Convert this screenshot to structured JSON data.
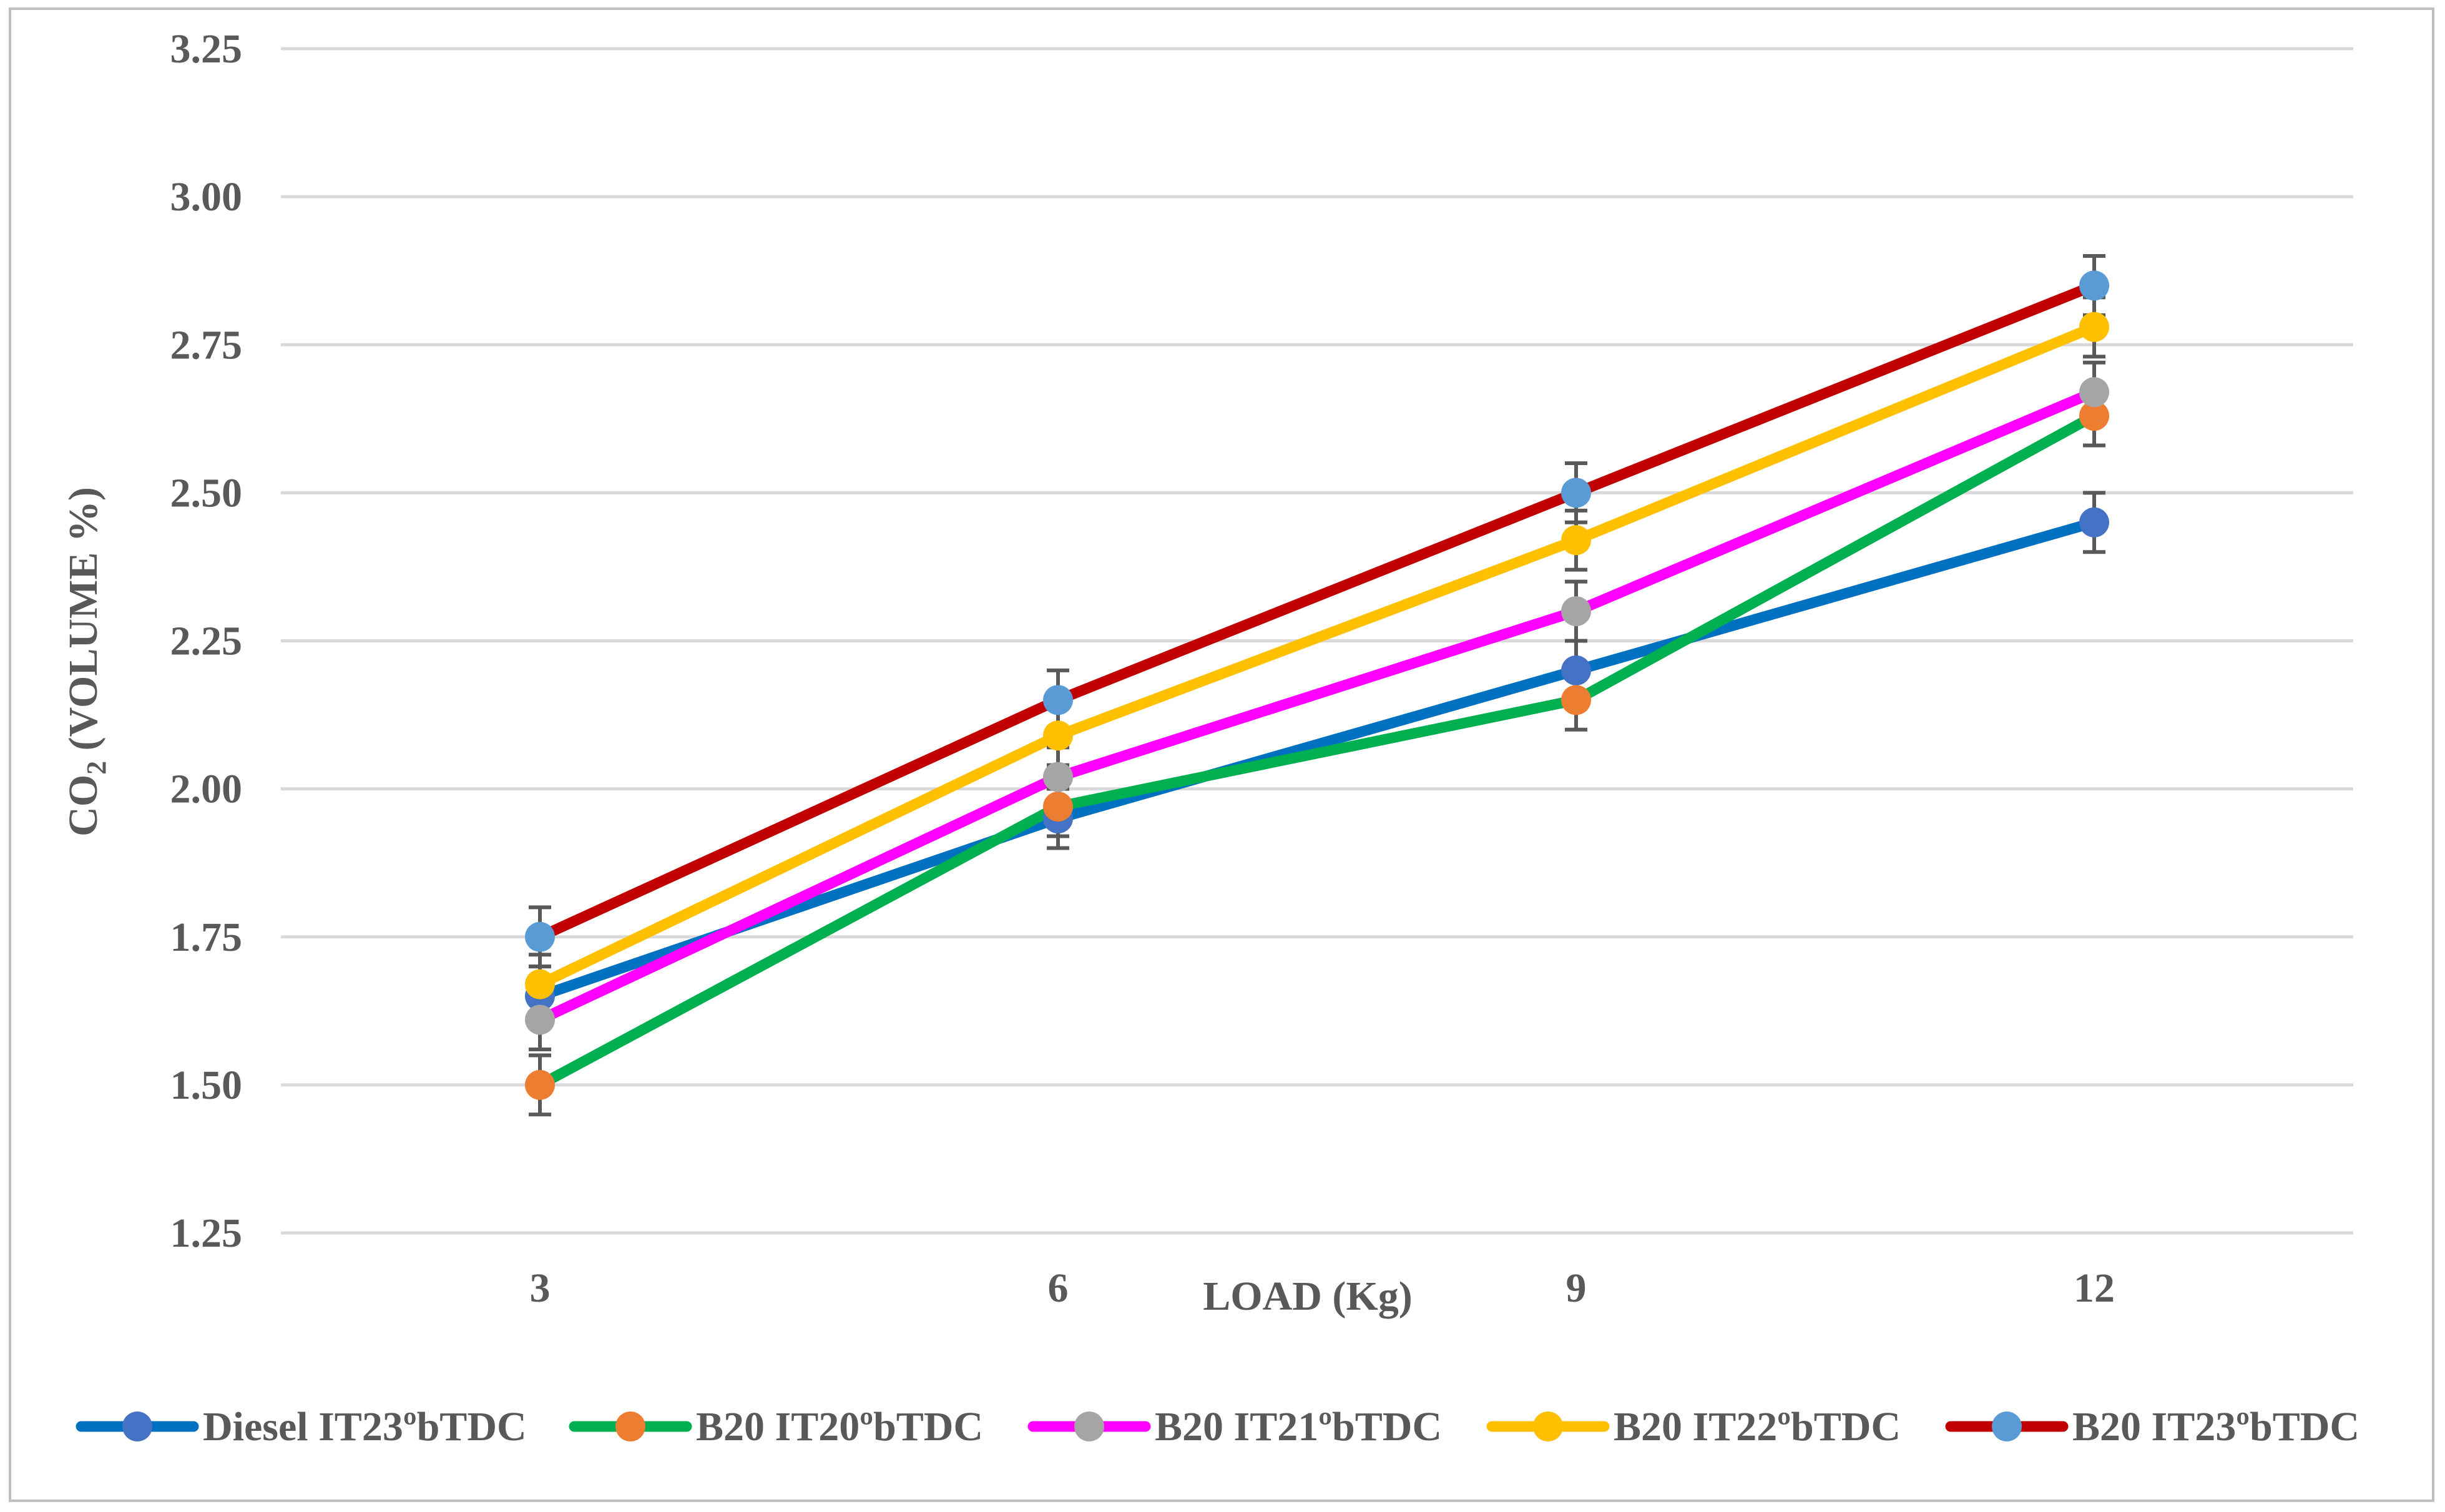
{
  "chart_data": {
    "type": "line",
    "xlabel": "LOAD (Kg)",
    "ylabel_main": "CO",
    "ylabel_sub": "2",
    "ylabel_rest": " (VOLUME %)",
    "categories": [
      "3",
      "6",
      "9",
      "12"
    ],
    "ylim": [
      1.25,
      3.25
    ],
    "yticks": [
      "1.25",
      "1.50",
      "1.75",
      "2.00",
      "2.25",
      "2.50",
      "2.75",
      "3.00",
      "3.25"
    ],
    "grid": true,
    "legend_position": "bottom",
    "error_bar": 0.05,
    "series": [
      {
        "name": "Diesel IT23ºbTDC",
        "values": [
          1.65,
          1.95,
          2.2,
          2.45
        ],
        "line_color": "#0070c0",
        "marker_color": "#4472c4"
      },
      {
        "name": "B20 IT20ºbTDC",
        "values": [
          1.5,
          1.97,
          2.15,
          2.63
        ],
        "line_color": "#00b050",
        "marker_color": "#ed7d31"
      },
      {
        "name": "B20 IT21ºbTDC",
        "values": [
          1.61,
          2.02,
          2.3,
          2.67
        ],
        "line_color": "#ff00ff",
        "marker_color": "#a5a5a5"
      },
      {
        "name": "B20 IT22ºbTDC",
        "values": [
          1.67,
          2.09,
          2.42,
          2.78
        ],
        "line_color": "#ffc000",
        "marker_color": "#ffc000"
      },
      {
        "name": "B20 IT23ºbTDC",
        "values": [
          1.75,
          2.15,
          2.5,
          2.85
        ],
        "line_color": "#c00000",
        "marker_color": "#5b9bd5"
      }
    ]
  }
}
